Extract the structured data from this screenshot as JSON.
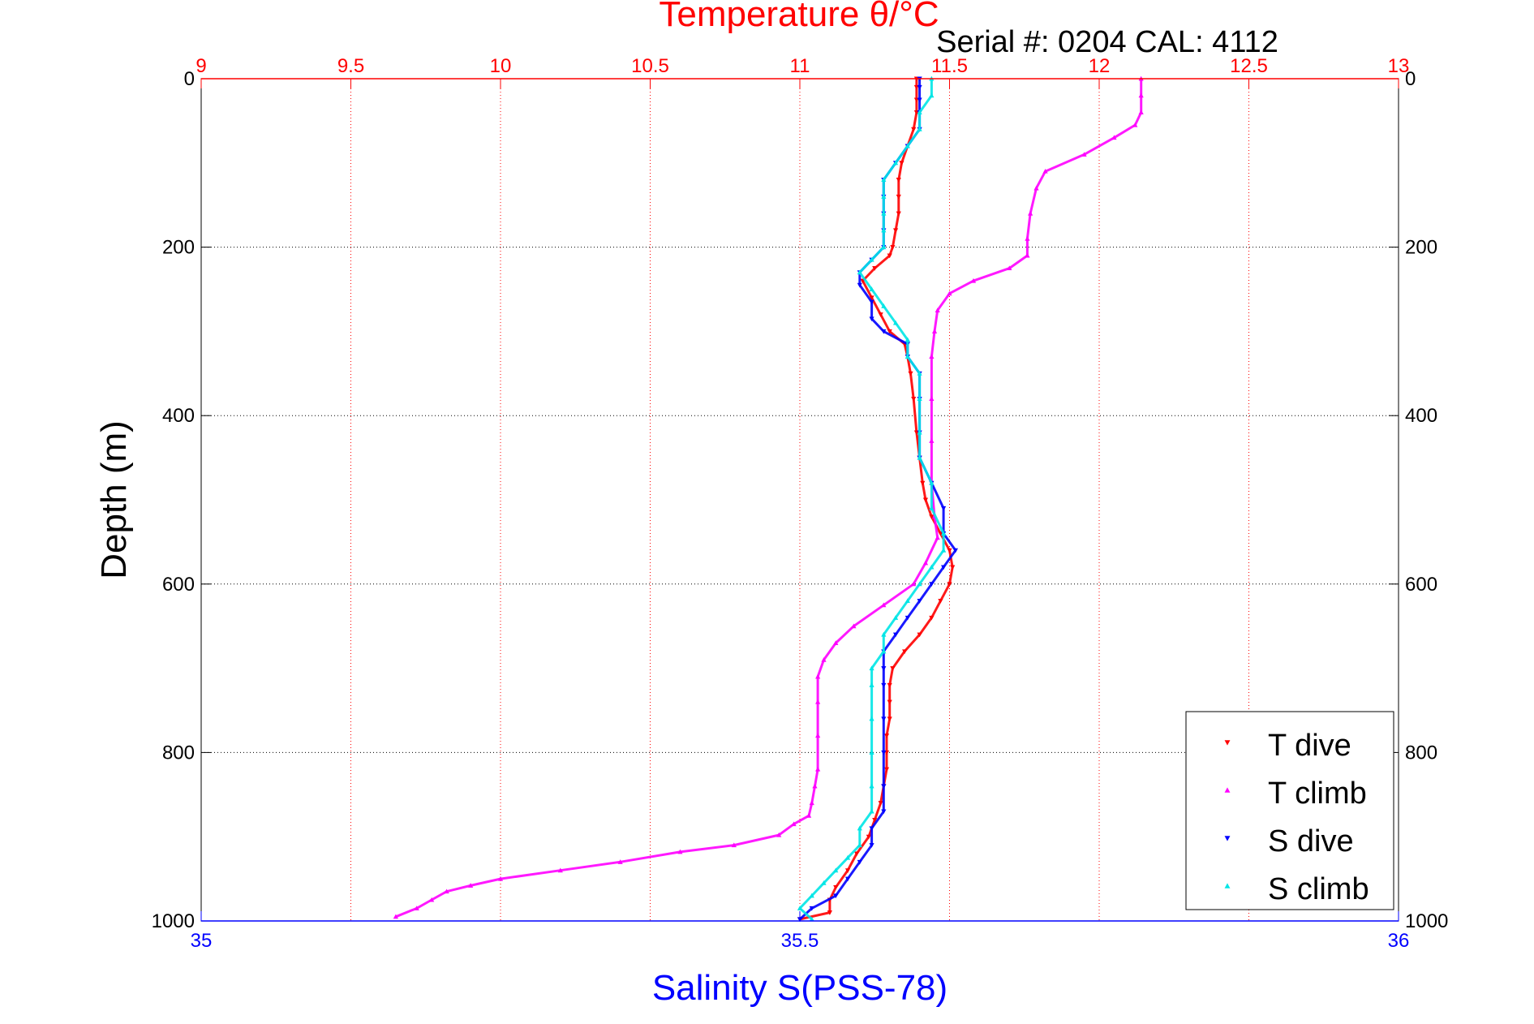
{
  "chart_data": {
    "type": "scatter",
    "title": "Temperature θ/°C",
    "subtitle": "Serial #: 0204  CAL: 4112",
    "ylabel": "Depth (m)",
    "xlabel_bottom": "Salinity S(PSS-78)",
    "y_axis": {
      "lim": [
        0,
        1000
      ],
      "reversed": true,
      "ticks": [
        "0",
        "200",
        "400",
        "600",
        "800",
        "1000"
      ],
      "tick_values": [
        0,
        200,
        400,
        600,
        800,
        1000
      ],
      "grid": true
    },
    "x_top": {
      "label": "Temperature θ/°C",
      "lim": [
        9,
        13
      ],
      "ticks": [
        "9",
        "9.5",
        "10",
        "10.5",
        "11",
        "11.5",
        "12",
        "12.5",
        "13"
      ],
      "tick_values": [
        9,
        9.5,
        10,
        10.5,
        11,
        11.5,
        12,
        12.5,
        13
      ],
      "grid": true,
      "color": "#ff0000"
    },
    "x_bottom": {
      "label": "Salinity S(PSS-78)",
      "lim": [
        35,
        36
      ],
      "ticks": [
        "35",
        "35.5",
        "36"
      ],
      "tick_values": [
        35,
        35.5,
        36
      ],
      "color": "#0000ff"
    },
    "legend": {
      "placement": "bottom-right"
    },
    "series": [
      {
        "name": "T dive",
        "axis": "top",
        "color": "#ff0000",
        "marker": "v",
        "points": [
          [
            11.39,
            0
          ],
          [
            11.39,
            10
          ],
          [
            11.39,
            25
          ],
          [
            11.39,
            40
          ],
          [
            11.38,
            60
          ],
          [
            11.36,
            80
          ],
          [
            11.34,
            100
          ],
          [
            11.33,
            120
          ],
          [
            11.33,
            140
          ],
          [
            11.33,
            160
          ],
          [
            11.32,
            180
          ],
          [
            11.31,
            200
          ],
          [
            11.3,
            210
          ],
          [
            11.25,
            225
          ],
          [
            11.21,
            240
          ],
          [
            11.24,
            260
          ],
          [
            11.27,
            280
          ],
          [
            11.3,
            300
          ],
          [
            11.35,
            315
          ],
          [
            11.36,
            330
          ],
          [
            11.37,
            350
          ],
          [
            11.38,
            380
          ],
          [
            11.39,
            420
          ],
          [
            11.4,
            450
          ],
          [
            11.41,
            480
          ],
          [
            11.42,
            500
          ],
          [
            11.44,
            520
          ],
          [
            11.47,
            540
          ],
          [
            11.5,
            560
          ],
          [
            11.51,
            580
          ],
          [
            11.5,
            600
          ],
          [
            11.47,
            620
          ],
          [
            11.44,
            640
          ],
          [
            11.4,
            660
          ],
          [
            11.35,
            680
          ],
          [
            11.31,
            700
          ],
          [
            11.3,
            720
          ],
          [
            11.3,
            740
          ],
          [
            11.3,
            760
          ],
          [
            11.29,
            780
          ],
          [
            11.29,
            800
          ],
          [
            11.29,
            820
          ],
          [
            11.28,
            840
          ],
          [
            11.27,
            860
          ],
          [
            11.25,
            880
          ],
          [
            11.23,
            900
          ],
          [
            11.19,
            920
          ],
          [
            11.16,
            940
          ],
          [
            11.12,
            960
          ],
          [
            11.1,
            975
          ],
          [
            11.1,
            990
          ],
          [
            11.0,
            998
          ]
        ]
      },
      {
        "name": "T climb",
        "axis": "top",
        "color": "#ff00ff",
        "marker": "^",
        "points": [
          [
            12.14,
            0
          ],
          [
            12.14,
            20
          ],
          [
            12.14,
            40
          ],
          [
            12.12,
            55
          ],
          [
            12.05,
            70
          ],
          [
            11.95,
            90
          ],
          [
            11.82,
            110
          ],
          [
            11.79,
            130
          ],
          [
            11.77,
            160
          ],
          [
            11.76,
            190
          ],
          [
            11.76,
            210
          ],
          [
            11.7,
            225
          ],
          [
            11.58,
            240
          ],
          [
            11.5,
            255
          ],
          [
            11.46,
            275
          ],
          [
            11.45,
            300
          ],
          [
            11.44,
            330
          ],
          [
            11.44,
            380
          ],
          [
            11.44,
            430
          ],
          [
            11.44,
            480
          ],
          [
            11.45,
            520
          ],
          [
            11.46,
            545
          ],
          [
            11.42,
            575
          ],
          [
            11.38,
            600
          ],
          [
            11.28,
            625
          ],
          [
            11.18,
            650
          ],
          [
            11.12,
            670
          ],
          [
            11.08,
            690
          ],
          [
            11.06,
            710
          ],
          [
            11.06,
            740
          ],
          [
            11.06,
            780
          ],
          [
            11.06,
            820
          ],
          [
            11.05,
            840
          ],
          [
            11.04,
            860
          ],
          [
            11.03,
            875
          ],
          [
            10.98,
            885
          ],
          [
            10.93,
            898
          ],
          [
            10.78,
            910
          ],
          [
            10.6,
            918
          ],
          [
            10.4,
            930
          ],
          [
            10.2,
            940
          ],
          [
            10.0,
            950
          ],
          [
            9.9,
            958
          ],
          [
            9.82,
            965
          ],
          [
            9.77,
            975
          ],
          [
            9.72,
            985
          ],
          [
            9.65,
            995
          ]
        ]
      },
      {
        "name": "S dive",
        "axis": "bottom",
        "color": "#0000ff",
        "marker": "v",
        "points": [
          [
            35.6,
            0
          ],
          [
            35.6,
            10
          ],
          [
            35.6,
            25
          ],
          [
            35.6,
            40
          ],
          [
            35.6,
            60
          ],
          [
            35.59,
            80
          ],
          [
            35.58,
            100
          ],
          [
            35.57,
            120
          ],
          [
            35.57,
            140
          ],
          [
            35.57,
            160
          ],
          [
            35.57,
            180
          ],
          [
            35.57,
            200
          ],
          [
            35.56,
            215
          ],
          [
            35.55,
            230
          ],
          [
            35.55,
            245
          ],
          [
            35.56,
            265
          ],
          [
            35.56,
            285
          ],
          [
            35.57,
            300
          ],
          [
            35.59,
            315
          ],
          [
            35.59,
            330
          ],
          [
            35.6,
            350
          ],
          [
            35.6,
            380
          ],
          [
            35.6,
            420
          ],
          [
            35.6,
            450
          ],
          [
            35.61,
            480
          ],
          [
            35.62,
            510
          ],
          [
            35.62,
            540
          ],
          [
            35.63,
            560
          ],
          [
            35.62,
            580
          ],
          [
            35.61,
            600
          ],
          [
            35.6,
            620
          ],
          [
            35.59,
            640
          ],
          [
            35.58,
            660
          ],
          [
            35.57,
            680
          ],
          [
            35.57,
            700
          ],
          [
            35.57,
            720
          ],
          [
            35.57,
            760
          ],
          [
            35.57,
            800
          ],
          [
            35.57,
            840
          ],
          [
            35.57,
            870
          ],
          [
            35.56,
            890
          ],
          [
            35.56,
            910
          ],
          [
            35.55,
            930
          ],
          [
            35.54,
            950
          ],
          [
            35.53,
            970
          ],
          [
            35.51,
            985
          ],
          [
            35.5,
            998
          ]
        ]
      },
      {
        "name": "S climb",
        "axis": "bottom",
        "color": "#00e5e5",
        "marker": "^",
        "points": [
          [
            35.61,
            0
          ],
          [
            35.61,
            20
          ],
          [
            35.6,
            40
          ],
          [
            35.6,
            60
          ],
          [
            35.59,
            80
          ],
          [
            35.58,
            100
          ],
          [
            35.57,
            120
          ],
          [
            35.57,
            140
          ],
          [
            35.57,
            160
          ],
          [
            35.57,
            180
          ],
          [
            35.57,
            200
          ],
          [
            35.56,
            215
          ],
          [
            35.55,
            230
          ],
          [
            35.56,
            250
          ],
          [
            35.57,
            270
          ],
          [
            35.58,
            290
          ],
          [
            35.59,
            310
          ],
          [
            35.59,
            330
          ],
          [
            35.6,
            350
          ],
          [
            35.6,
            380
          ],
          [
            35.6,
            420
          ],
          [
            35.6,
            450
          ],
          [
            35.61,
            480
          ],
          [
            35.61,
            510
          ],
          [
            35.62,
            540
          ],
          [
            35.62,
            560
          ],
          [
            35.61,
            580
          ],
          [
            35.6,
            600
          ],
          [
            35.59,
            620
          ],
          [
            35.58,
            640
          ],
          [
            35.57,
            660
          ],
          [
            35.57,
            680
          ],
          [
            35.56,
            700
          ],
          [
            35.56,
            720
          ],
          [
            35.56,
            760
          ],
          [
            35.56,
            800
          ],
          [
            35.56,
            840
          ],
          [
            35.56,
            870
          ],
          [
            35.55,
            890
          ],
          [
            35.55,
            910
          ],
          [
            35.54,
            925
          ],
          [
            35.53,
            940
          ],
          [
            35.52,
            955
          ],
          [
            35.51,
            970
          ],
          [
            35.5,
            985
          ],
          [
            35.51,
            998
          ]
        ]
      }
    ]
  }
}
